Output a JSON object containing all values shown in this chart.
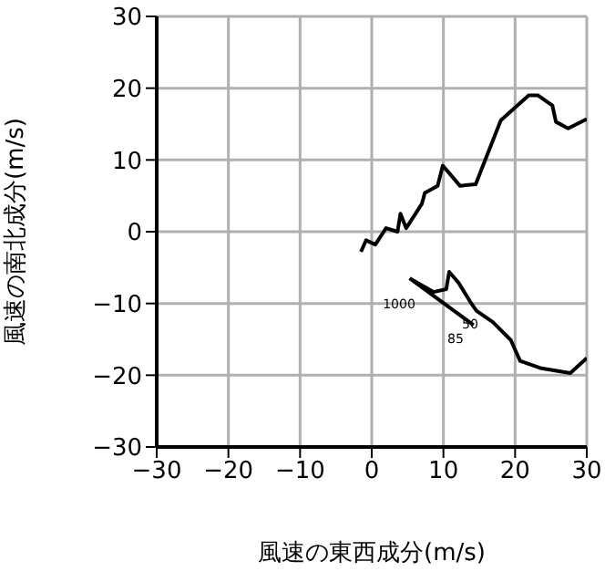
{
  "chart_data": {
    "type": "line",
    "xlabel": "風速の東西成分(m/s)",
    "ylabel": "風速の南北成分(m/s)",
    "xlim": [
      -30,
      30
    ],
    "ylim": [
      -30,
      30
    ],
    "xticks": [
      -30,
      -20,
      -10,
      0,
      10,
      20,
      30
    ],
    "yticks": [
      -30,
      -20,
      -10,
      0,
      10,
      20,
      30
    ],
    "grid": true,
    "marker": "none",
    "line_style": "solid",
    "series": [
      {
        "color": "#000000",
        "x": [
          -1.5,
          -0.8,
          0.5,
          2,
          3.6,
          4,
          4.8,
          7,
          7.4,
          9.2,
          9.9,
          10.6,
          12.3,
          14.5,
          18,
          21.9,
          23.2,
          25.2,
          25.7,
          27.4,
          30
        ],
        "values": [
          -2.8,
          -1.2,
          -1.8,
          0.5,
          0,
          2.5,
          0.5,
          3.9,
          5.4,
          6.4,
          9.2,
          8.4,
          6.4,
          6.6,
          15.5,
          19,
          19,
          17.6,
          15.3,
          14.4,
          15.7
        ]
      },
      {
        "color": "#000000",
        "x": [
          5.3,
          8.6,
          10.4,
          10.8,
          12.1,
          13.7,
          14.6,
          16.9,
          19.4,
          20.7,
          23.5,
          27.7,
          30
        ],
        "values": [
          -6.5,
          -8.4,
          -8,
          -5.6,
          -7.1,
          -9.7,
          -11,
          -12.6,
          -15.1,
          -18,
          -19,
          -19.7,
          -17.6
        ]
      },
      {
        "color": "#000000",
        "x": [
          5.3,
          14.2
        ],
        "values": [
          -6.5,
          -13
        ]
      }
    ],
    "annotations": [
      "1000",
      "50",
      "85"
    ]
  }
}
